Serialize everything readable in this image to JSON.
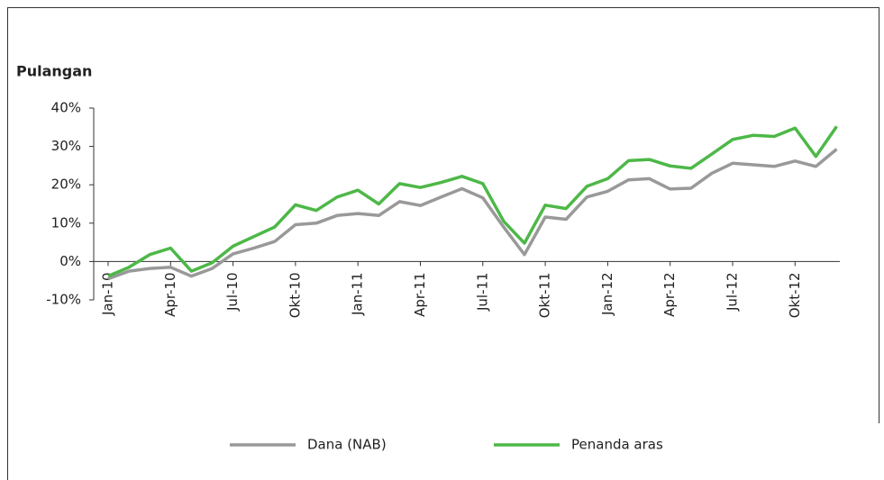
{
  "chart_data": {
    "type": "line",
    "title": "Pulangan",
    "categories": [
      "Jan-10",
      null,
      null,
      "Apr-10",
      null,
      null,
      "Jul-10",
      null,
      null,
      "Okt-10",
      null,
      null,
      "Jan-11",
      null,
      null,
      "Apr-11",
      null,
      null,
      "Jul-11",
      null,
      null,
      "Okt-11",
      null,
      null,
      "Jan-12",
      null,
      null,
      "Apr-12",
      null,
      null,
      "Jul-12",
      null,
      null,
      "Okt-12",
      null,
      null
    ],
    "series": [
      {
        "name": "Dana (NAB)",
        "color": "#999999",
        "values": [
          -4.5,
          -2.5,
          -1.8,
          -1.5,
          -3.8,
          -1.8,
          2.0,
          3.5,
          5.2,
          9.6,
          10.0,
          12.0,
          12.5,
          12.0,
          15.6,
          14.6,
          16.8,
          19.0,
          16.6,
          9.0,
          1.8,
          11.6,
          11.0,
          16.8,
          18.3,
          21.3,
          21.6,
          18.9,
          19.1,
          23.0,
          25.6,
          25.2,
          24.8,
          26.2,
          24.8,
          29.3
        ]
      },
      {
        "name": "Penanda aras",
        "color": "#4db848",
        "values": [
          -3.8,
          -1.5,
          1.8,
          3.5,
          -2.5,
          -0.3,
          4.0,
          6.5,
          9.0,
          14.8,
          13.3,
          16.8,
          18.6,
          15.0,
          20.3,
          19.3,
          20.6,
          22.2,
          20.3,
          10.5,
          4.8,
          14.7,
          13.8,
          19.6,
          21.6,
          26.3,
          26.6,
          24.9,
          24.3,
          28.0,
          31.8,
          32.9,
          32.6,
          34.8,
          27.4,
          35.2
        ]
      }
    ],
    "ylim": [
      -10,
      40
    ],
    "yticks": [
      {
        "value": -10,
        "label": "-10%"
      },
      {
        "value": 0,
        "label": "0%"
      },
      {
        "value": 10,
        "label": "10%"
      },
      {
        "value": 20,
        "label": "20%"
      },
      {
        "value": 30,
        "label": "30%"
      },
      {
        "value": 40,
        "label": "40%"
      }
    ],
    "legend": "bottom"
  }
}
